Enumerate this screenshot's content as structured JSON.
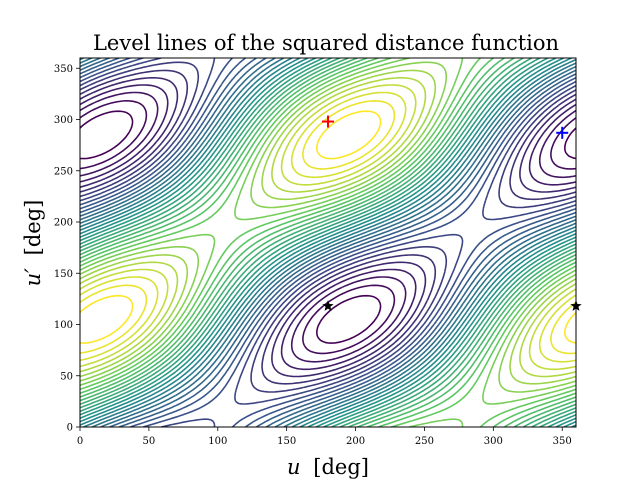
{
  "chart_data": {
    "type": "contour",
    "title": "Level lines of the squared distance function",
    "xlabel_var": "u",
    "xlabel_unit": "[deg]",
    "ylabel_var": "u′",
    "ylabel_unit": "[deg]",
    "xlim": [
      0,
      360
    ],
    "ylim": [
      0,
      360
    ],
    "xticks": [
      0,
      50,
      100,
      150,
      200,
      250,
      300,
      350
    ],
    "yticks": [
      0,
      50,
      100,
      150,
      200,
      250,
      300,
      350
    ],
    "colormap": [
      "#440154",
      "#3b528b",
      "#21918c",
      "#5ec962",
      "#fde725"
    ],
    "grid": false,
    "legend": "none",
    "markers": [
      {
        "shape": "plus",
        "color": "#ff0000",
        "x": 180,
        "y": 298
      },
      {
        "shape": "plus",
        "color": "#0000ff",
        "x": 350,
        "y": 287
      },
      {
        "shape": "star",
        "color": "#000000",
        "x": 180,
        "y": 118
      },
      {
        "shape": "star",
        "color": "#000000",
        "x": 360,
        "y": 118
      }
    ]
  }
}
